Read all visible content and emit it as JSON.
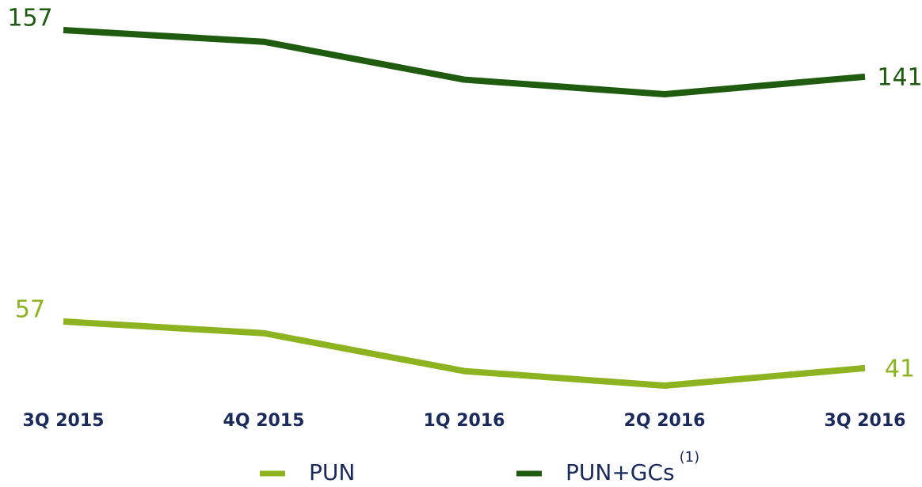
{
  "chart_data": {
    "type": "line",
    "categories": [
      "3Q 2015",
      "4Q 2015",
      "1Q 2016",
      "2Q 2016",
      "3Q 2016"
    ],
    "series": [
      {
        "name": "PUN",
        "color": "#8db420",
        "values": [
          57,
          53,
          40,
          35,
          41
        ]
      },
      {
        "name": "PUN+GCs",
        "footnote_mark": "(1)",
        "color": "#1f5c10",
        "values": [
          157,
          153,
          140,
          135,
          141
        ]
      }
    ]
  }
}
